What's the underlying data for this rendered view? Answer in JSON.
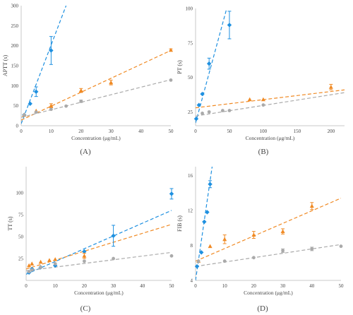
{
  "colors": {
    "blue": "#1E90E0",
    "orange": "#F08A24",
    "gray": "#AAAAAA",
    "axis": "#C8C8C8",
    "text": "#444444"
  },
  "chart_data": [
    {
      "type": "scatter",
      "panel_label": "(A)",
      "xlabel": "Concentration (μg/mL)",
      "ylabel": "APTT (s)",
      "xlim": [
        0,
        50
      ],
      "ylim": [
        0,
        300
      ],
      "xticks": [
        0,
        10,
        20,
        30,
        40,
        50
      ],
      "yticks": [
        0,
        50,
        100,
        150,
        200,
        250,
        300
      ],
      "series": [
        {
          "color": "blue",
          "points": [
            {
              "x": 1,
              "y": 27
            },
            {
              "x": 3,
              "y": 55
            },
            {
              "x": 5,
              "y": 85,
              "err": 12
            },
            {
              "x": 10,
              "y": 188,
              "err": 35
            }
          ],
          "trend": [
            {
              "x": 0,
              "y": 5
            },
            {
              "x": 15,
              "y": 300
            }
          ]
        },
        {
          "color": "orange",
          "points": [
            {
              "x": 1,
              "y": 27
            },
            {
              "x": 5,
              "y": 37
            },
            {
              "x": 10,
              "y": 50,
              "err": 5
            },
            {
              "x": 20,
              "y": 88,
              "err": 5
            },
            {
              "x": 30,
              "y": 108,
              "err": 6
            },
            {
              "x": 50,
              "y": 189,
              "err": 3
            }
          ],
          "trend": [
            {
              "x": 0,
              "y": 14
            },
            {
              "x": 50,
              "y": 188
            }
          ]
        },
        {
          "color": "gray",
          "points": [
            {
              "x": 1,
              "y": 27
            },
            {
              "x": 5,
              "y": 34
            },
            {
              "x": 10,
              "y": 41
            },
            {
              "x": 15,
              "y": 49
            },
            {
              "x": 20,
              "y": 61,
              "err": 3
            },
            {
              "x": 50,
              "y": 114
            }
          ],
          "trend": [
            {
              "x": 0,
              "y": 21
            },
            {
              "x": 50,
              "y": 115
            }
          ]
        }
      ]
    },
    {
      "type": "scatter",
      "panel_label": "(B)",
      "xlabel": "Concentration (μg/mL)",
      "ylabel": "PT (s)",
      "xlim": [
        0,
        220
      ],
      "ylim": [
        15,
        100
      ],
      "xticks": [
        0,
        50,
        100,
        150,
        200
      ],
      "yticks": [
        25,
        50,
        75,
        100
      ],
      "series": [
        {
          "color": "blue",
          "points": [
            {
              "x": 1,
              "y": 20
            },
            {
              "x": 5,
              "y": 30
            },
            {
              "x": 10,
              "y": 38
            },
            {
              "x": 20,
              "y": 60,
              "err": 4
            },
            {
              "x": 50,
              "y": 88,
              "err": 10
            }
          ],
          "trend": [
            {
              "x": 0,
              "y": 17
            },
            {
              "x": 46,
              "y": 100
            }
          ]
        },
        {
          "color": "orange",
          "points": [
            {
              "x": 80,
              "y": 34
            },
            {
              "x": 100,
              "y": 34
            },
            {
              "x": 200,
              "y": 43,
              "err": 2
            }
          ],
          "trend": [
            {
              "x": 0,
              "y": 28
            },
            {
              "x": 220,
              "y": 41
            }
          ]
        },
        {
          "color": "gray",
          "points": [
            {
              "x": 10,
              "y": 24
            },
            {
              "x": 20,
              "y": 25
            },
            {
              "x": 40,
              "y": 26
            },
            {
              "x": 50,
              "y": 26
            },
            {
              "x": 100,
              "y": 30
            }
          ],
          "trend": [
            {
              "x": 0,
              "y": 22
            },
            {
              "x": 220,
              "y": 39
            }
          ]
        }
      ]
    },
    {
      "type": "scatter",
      "panel_label": "(C)",
      "xlabel": "Concentration (μg/mL)",
      "ylabel": "TT (s)",
      "xlim": [
        0,
        50
      ],
      "ylim": [
        0,
        130
      ],
      "xticks": [
        0,
        10,
        20,
        30,
        40,
        50
      ],
      "yticks": [
        25,
        50,
        75,
        100
      ],
      "series": [
        {
          "color": "blue",
          "points": [
            {
              "x": 1,
              "y": 9
            },
            {
              "x": 2,
              "y": 13
            },
            {
              "x": 5,
              "y": 15
            },
            {
              "x": 10,
              "y": 17
            },
            {
              "x": 20,
              "y": 33
            },
            {
              "x": 30,
              "y": 51,
              "err": 12
            },
            {
              "x": 50,
              "y": 99,
              "err": 6
            }
          ],
          "trend": [
            {
              "x": 0,
              "y": 7
            },
            {
              "x": 50,
              "y": 80
            }
          ]
        },
        {
          "color": "orange",
          "points": [
            {
              "x": 1,
              "y": 17
            },
            {
              "x": 2,
              "y": 19
            },
            {
              "x": 5,
              "y": 21
            },
            {
              "x": 8,
              "y": 23
            },
            {
              "x": 10,
              "y": 24
            },
            {
              "x": 20,
              "y": 28,
              "err": 3
            }
          ],
          "trend": [
            {
              "x": 0,
              "y": 13
            },
            {
              "x": 50,
              "y": 64
            }
          ]
        },
        {
          "color": "gray",
          "points": [
            {
              "x": 1,
              "y": 10
            },
            {
              "x": 2,
              "y": 12
            },
            {
              "x": 5,
              "y": 15
            },
            {
              "x": 10,
              "y": 19
            },
            {
              "x": 20,
              "y": 22
            },
            {
              "x": 30,
              "y": 25
            },
            {
              "x": 50,
              "y": 28
            }
          ],
          "trend": [
            {
              "x": 0,
              "y": 11
            },
            {
              "x": 50,
              "y": 32
            }
          ]
        }
      ]
    },
    {
      "type": "scatter",
      "panel_label": "(D)",
      "xlabel": "Concentration (μg/mL)",
      "ylabel": "FIB (s)",
      "xlim": [
        0,
        50
      ],
      "ylim": [
        4,
        17
      ],
      "xticks": [
        0,
        10,
        20,
        30,
        40,
        50
      ],
      "yticks": [
        4,
        8,
        12,
        16
      ],
      "series": [
        {
          "color": "blue",
          "points": [
            {
              "x": 0.5,
              "y": 5.6
            },
            {
              "x": 2,
              "y": 7.2
            },
            {
              "x": 3,
              "y": 10.7
            },
            {
              "x": 4,
              "y": 11.8
            },
            {
              "x": 5,
              "y": 15,
              "err": 0.4
            }
          ],
          "trend": [
            {
              "x": 0,
              "y": 4
            },
            {
              "x": 5.7,
              "y": 17
            }
          ]
        },
        {
          "color": "orange",
          "points": [
            {
              "x": 1,
              "y": 6.2
            },
            {
              "x": 5,
              "y": 7.9
            },
            {
              "x": 10,
              "y": 8.7,
              "err": 0.5
            },
            {
              "x": 20,
              "y": 9.2,
              "err": 0.4
            },
            {
              "x": 30,
              "y": 9.6,
              "err": 0.3
            },
            {
              "x": 40,
              "y": 12.5,
              "err": 0.4
            }
          ],
          "trend": [
            {
              "x": 0,
              "y": 6.2
            },
            {
              "x": 50,
              "y": 13.4
            }
          ]
        },
        {
          "color": "gray",
          "points": [
            {
              "x": 1,
              "y": 6.2
            },
            {
              "x": 10,
              "y": 6.2
            },
            {
              "x": 20,
              "y": 6.6
            },
            {
              "x": 30,
              "y": 7.4,
              "err": 0.2
            },
            {
              "x": 40,
              "y": 7.6,
              "err": 0.2
            },
            {
              "x": 50,
              "y": 7.9
            }
          ],
          "trend": [
            {
              "x": 0,
              "y": 5.6
            },
            {
              "x": 50,
              "y": 8.1
            }
          ]
        }
      ]
    }
  ]
}
